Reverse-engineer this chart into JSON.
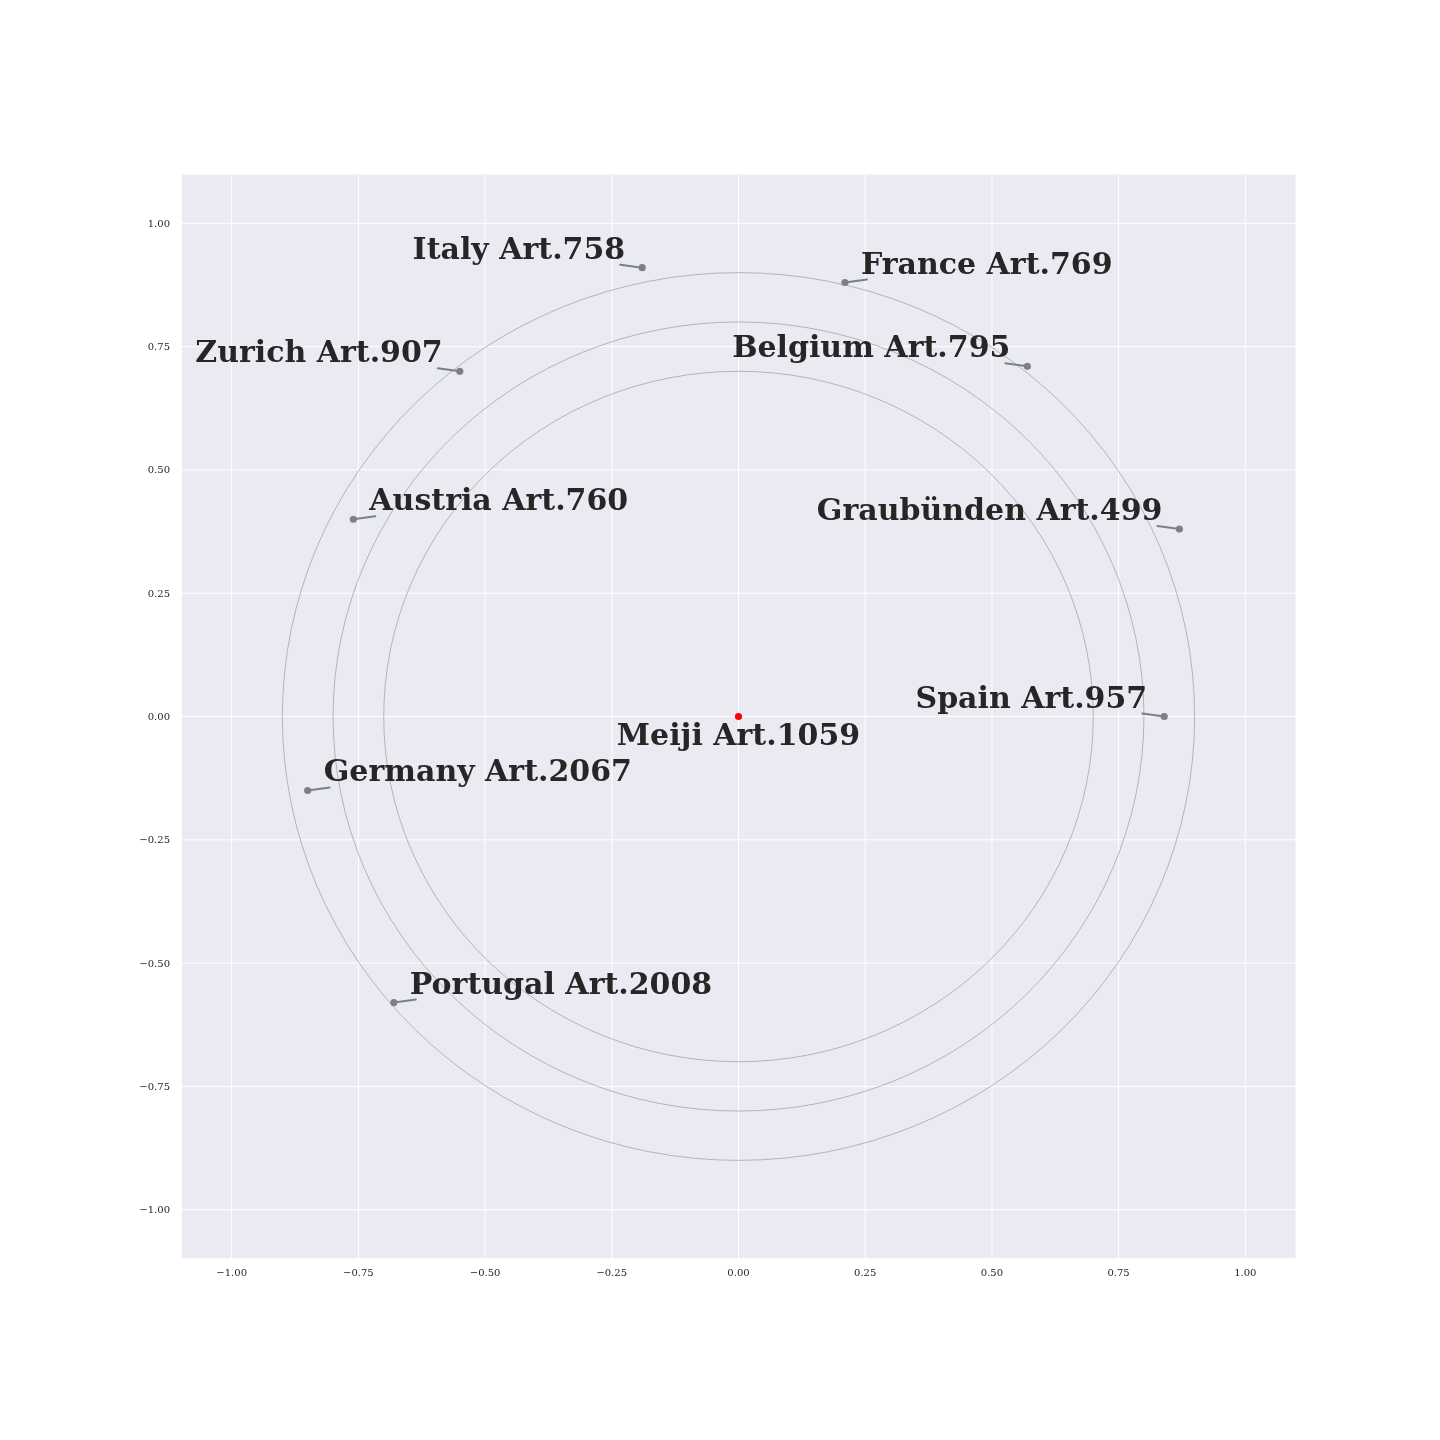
{
  "chart_data": {
    "type": "scatter",
    "xlim": [
      -1.1,
      1.1
    ],
    "ylim": [
      -1.1,
      1.1
    ],
    "xticks": [
      {
        "value": -1,
        "label": "−1.00"
      },
      {
        "value": -0.75,
        "label": "−0.75"
      },
      {
        "value": -0.5,
        "label": "−0.50"
      },
      {
        "value": -0.25,
        "label": "−0.25"
      },
      {
        "value": 0,
        "label": "0.00"
      },
      {
        "value": 0.25,
        "label": "0.25"
      },
      {
        "value": 0.5,
        "label": "0.50"
      },
      {
        "value": 0.75,
        "label": "0.75"
      },
      {
        "value": 1,
        "label": "1.00"
      }
    ],
    "yticks": [
      {
        "value": -1,
        "label": "−1.00"
      },
      {
        "value": -0.75,
        "label": "−0.75"
      },
      {
        "value": -0.5,
        "label": "−0.50"
      },
      {
        "value": -0.25,
        "label": "−0.25"
      },
      {
        "value": 0,
        "label": "0.00"
      },
      {
        "value": 0.25,
        "label": "0.25"
      },
      {
        "value": 0.5,
        "label": "0.50"
      },
      {
        "value": 0.75,
        "label": "0.75"
      },
      {
        "value": 1,
        "label": "1.00"
      }
    ],
    "grid": true,
    "series": [
      {
        "marker": "circle",
        "x": [
          -0.19,
          0.21,
          -0.55,
          0.57,
          -0.76,
          0.87,
          0.84,
          0,
          -0.85,
          -0.68
        ],
        "values": [
          0.91,
          0.88,
          0.7,
          0.71,
          0.4,
          0.38,
          0,
          0,
          -0.15,
          -0.58
        ],
        "colors": [
          "#808080",
          "#808080",
          "#808080",
          "#808080",
          "#808080",
          "#808080",
          "#808080",
          "#ff0000",
          "#808080",
          "#808080"
        ]
      }
    ],
    "annotations": [
      {
        "text": "Italy Art.758",
        "x": -0.19,
        "y": 0.91
      },
      {
        "text": "France Art.769",
        "x": 0.21,
        "y": 0.88
      },
      {
        "text": "Zurich Art.907",
        "x": -0.55,
        "y": 0.7
      },
      {
        "text": "Belgium Art.795",
        "x": 0.57,
        "y": 0.71
      },
      {
        "text": "Austria Art.760",
        "x": -0.76,
        "y": 0.4
      },
      {
        "text": "Graubünden Art.499",
        "x": 0.87,
        "y": 0.38
      },
      {
        "text": "Spain Art.957",
        "x": 0.84,
        "y": 0
      },
      {
        "text": "Meiji Art.1059",
        "x": 0,
        "y": 0
      },
      {
        "text": "Germany Art.2067",
        "x": -0.85,
        "y": -0.15
      },
      {
        "text": "Portugal Art.2008",
        "x": -0.68,
        "y": -0.58
      }
    ]
  }
}
